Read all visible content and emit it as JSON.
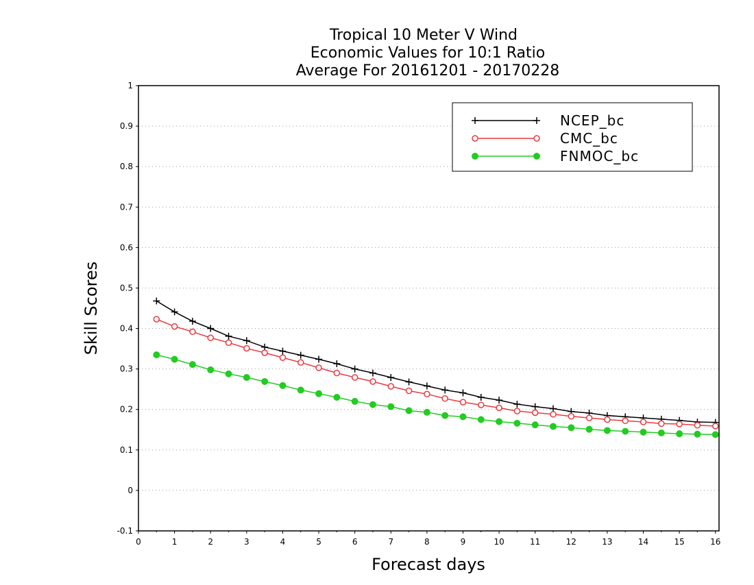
{
  "chart_data": {
    "type": "line",
    "title": [
      "Tropical 10 Meter V Wind",
      "Economic Values for 10:1 Ratio",
      "Average For 20161201 - 20170228"
    ],
    "xlabel": "Forecast days",
    "ylabel": "Skill Scores",
    "xlim": [
      0,
      16.1
    ],
    "ylim": [
      -0.1,
      1
    ],
    "x_ticks": [
      "0",
      "1",
      "2",
      "3",
      "4",
      "5",
      "6",
      "7",
      "8",
      "9",
      "10",
      "11",
      "12",
      "13",
      "14",
      "15",
      "16"
    ],
    "y_ticks": [
      "-0.1",
      "0",
      "0.1",
      "0.2",
      "0.3",
      "0.4",
      "0.5",
      "0.6",
      "0.7",
      "0.8",
      "0.9",
      "1"
    ],
    "grid": true,
    "legend_position": "top-right",
    "x": [
      0.5,
      1,
      1.5,
      2,
      2.5,
      3,
      3.5,
      4,
      4.5,
      5,
      5.5,
      6,
      6.5,
      7,
      7.5,
      8,
      8.5,
      9,
      9.5,
      10,
      10.5,
      11,
      11.5,
      12,
      12.5,
      13,
      13.5,
      14,
      14.5,
      15,
      15.5,
      16
    ],
    "series": [
      {
        "name": "NCEP_bc",
        "color": "#000000",
        "marker": "plus",
        "values": [
          0.468,
          0.441,
          0.418,
          0.4,
          0.381,
          0.37,
          0.354,
          0.344,
          0.334,
          0.324,
          0.313,
          0.3,
          0.29,
          0.279,
          0.268,
          0.258,
          0.248,
          0.241,
          0.23,
          0.223,
          0.213,
          0.207,
          0.202,
          0.195,
          0.191,
          0.185,
          0.182,
          0.179,
          0.176,
          0.173,
          0.169,
          0.168
        ]
      },
      {
        "name": "CMC_bc",
        "color": "#e8393f",
        "marker": "open-circle",
        "values": [
          0.423,
          0.405,
          0.392,
          0.377,
          0.365,
          0.351,
          0.34,
          0.328,
          0.316,
          0.303,
          0.29,
          0.279,
          0.269,
          0.257,
          0.246,
          0.238,
          0.227,
          0.218,
          0.211,
          0.204,
          0.196,
          0.192,
          0.188,
          0.183,
          0.179,
          0.175,
          0.172,
          0.169,
          0.165,
          0.164,
          0.161,
          0.159
        ]
      },
      {
        "name": "FNMOC_bc",
        "color": "#22cc22",
        "marker": "filled-circle",
        "values": [
          0.335,
          0.324,
          0.311,
          0.298,
          0.288,
          0.279,
          0.269,
          0.259,
          0.248,
          0.239,
          0.23,
          0.22,
          0.212,
          0.207,
          0.197,
          0.193,
          0.185,
          0.182,
          0.175,
          0.17,
          0.166,
          0.162,
          0.158,
          0.155,
          0.151,
          0.148,
          0.146,
          0.144,
          0.142,
          0.14,
          0.139,
          0.138
        ]
      }
    ]
  }
}
